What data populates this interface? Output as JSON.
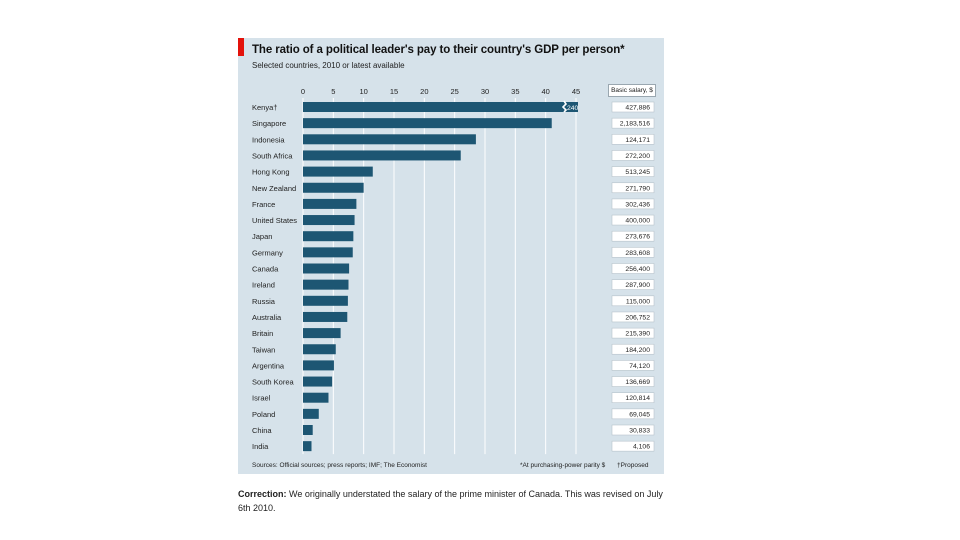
{
  "header": {
    "title": "The ratio of a political leader's pay to their country's GDP per person*",
    "subtitle": "Selected countries, 2010 or latest available"
  },
  "salary_header": "Basic salary, $",
  "footer": {
    "sources": "Sources: Official sources; press reports; IMF; The Economist",
    "footnote_ppp": "*At purchasing-power parity $",
    "footnote_proposed": "†Proposed"
  },
  "correction": {
    "label": "Correction:",
    "text": "We originally understated the salary of the prime minister of Canada. This was revised on July 6th 2010."
  },
  "colors": {
    "bar": "#1d5673",
    "accent": "#e3120b",
    "background": "#d6e2ea"
  },
  "chart_data": {
    "type": "bar",
    "orientation": "horizontal",
    "title": "The ratio of a political leader's pay to their country's GDP per person*",
    "subtitle": "Selected countries, 2010 or latest available",
    "xlim": [
      0,
      45
    ],
    "ticks": [
      0,
      5,
      10,
      15,
      20,
      25,
      30,
      35,
      40,
      45
    ],
    "categories": [
      "Kenya†",
      "Singapore",
      "Indonesia",
      "South Africa",
      "Hong Kong",
      "New Zealand",
      "France",
      "United States",
      "Japan",
      "Germany",
      "Canada",
      "Ireland",
      "Russia",
      "Australia",
      "Britain",
      "Taiwan",
      "Argentina",
      "South Korea",
      "Israel",
      "Poland",
      "China",
      "India"
    ],
    "values": [
      240,
      41,
      28.5,
      26,
      11.5,
      10,
      8.8,
      8.5,
      8.3,
      8.2,
      7.6,
      7.5,
      7.4,
      7.3,
      6.2,
      5.4,
      5.1,
      4.8,
      4.2,
      2.6,
      1.6,
      1.4
    ],
    "value_labels": [
      "240",
      "",
      "",
      "",
      "",
      "",
      "",
      "",
      "",
      "",
      "",
      "",
      "",
      "",
      "",
      "",
      "",
      "",
      "",
      "",
      "",
      ""
    ],
    "salaries": [
      "427,886",
      "2,183,516",
      "124,171",
      "272,200",
      "513,245",
      "271,790",
      "302,436",
      "400,000",
      "273,676",
      "283,608",
      "256,400",
      "287,900",
      "115,000",
      "206,752",
      "215,390",
      "184,200",
      "74,120",
      "136,669",
      "120,814",
      "69,045",
      "30,833",
      "4,106"
    ],
    "grid": true,
    "legend": "none"
  }
}
